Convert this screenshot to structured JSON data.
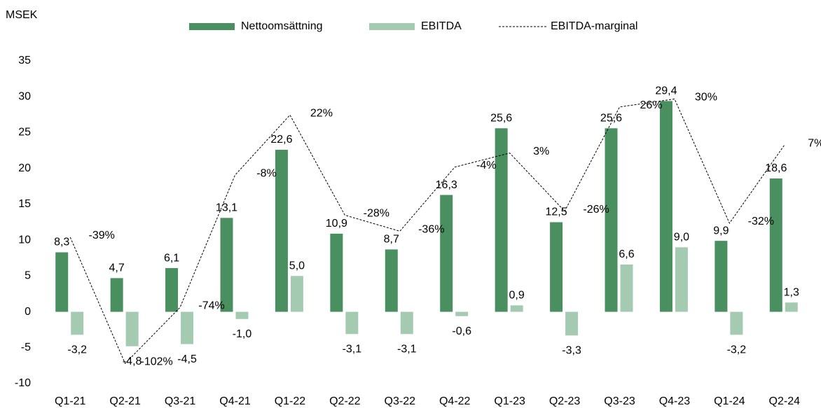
{
  "chart_data": {
    "type": "bar_line",
    "y_label": "MSEK",
    "categories": [
      "Q1-21",
      "Q2-21",
      "Q3-21",
      "Q4-21",
      "Q1-22",
      "Q2-22",
      "Q3-22",
      "Q4-22",
      "Q1-23",
      "Q2-23",
      "Q3-23",
      "Q4-23",
      "Q1-24",
      "Q2-24"
    ],
    "series": [
      {
        "name": "Nettoomsättning",
        "type": "bar",
        "color": "#4a8f60",
        "values": [
          8.3,
          4.7,
          6.1,
          13.1,
          22.6,
          10.9,
          8.7,
          16.3,
          25.6,
          12.5,
          25.6,
          29.4,
          9.9,
          18.6
        ],
        "value_labels": [
          "8,3",
          "4,7",
          "6,1",
          "13,1",
          "22,6",
          "10,9",
          "8,7",
          "16,3",
          "25,6",
          "12,5",
          "25,6",
          "29,4",
          "9,9",
          "18,6"
        ]
      },
      {
        "name": "EBITDA",
        "type": "bar",
        "color": "#a4cbb1",
        "values": [
          -3.2,
          -4.8,
          -4.5,
          -1.0,
          5.0,
          -3.1,
          -3.1,
          -0.6,
          0.9,
          -3.3,
          6.6,
          9.0,
          -3.2,
          1.3
        ],
        "value_labels": [
          "-3,2",
          "-4,8",
          "-4,5",
          "-1,0",
          "5,0",
          "-3,1",
          "-3,1",
          "-0,6",
          "0,9",
          "-3,3",
          "6,6",
          "9,0",
          "-3,2",
          "1,3"
        ]
      },
      {
        "name": "EBITDA-marginal",
        "type": "line",
        "axis": "y2",
        "color": "#000000",
        "dashed": true,
        "values": [
          -39,
          -102,
          -74,
          -8,
          22,
          -28,
          -36,
          -4,
          3,
          -26,
          26,
          30,
          -32,
          7
        ],
        "value_labels": [
          "-39%",
          "-102%",
          "-74%",
          "-8%",
          "22%",
          "-28%",
          "-36%",
          "-4%",
          "3%",
          "-26%",
          "26%",
          "30%",
          "-32%",
          "7%"
        ]
      }
    ],
    "ylim": [
      -10,
      35
    ],
    "yticks": [
      -10,
      -5,
      0,
      5,
      10,
      15,
      20,
      25,
      30,
      35
    ],
    "y2lim": [
      -112,
      49
    ]
  }
}
